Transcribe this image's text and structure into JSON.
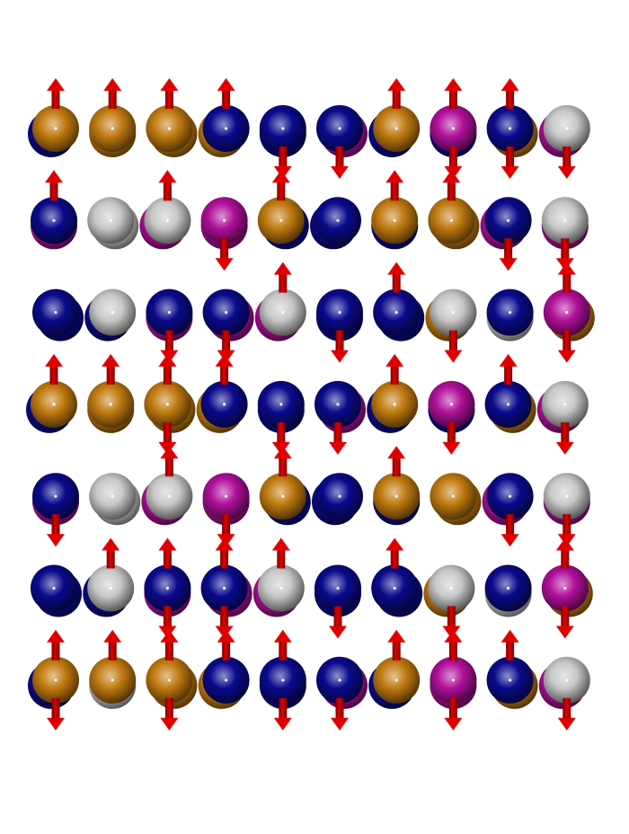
{
  "colors": {
    "background": "#ffffff",
    "blue": "#0a0a8c",
    "orange": "#c07a10",
    "silver": "#c8c8c8",
    "magenta": "#b0109a",
    "arrow": "#e00000",
    "arrow_dark": "#7a0000"
  },
  "lattice": {
    "rows": [
      {
        "atoms": [
          {
            "front": "orange",
            "back": "blue",
            "spin": "up"
          },
          {
            "front": "orange",
            "back": "orange",
            "spin": "up"
          },
          {
            "front": "orange",
            "back": "orange",
            "spin": "up"
          },
          {
            "front": "blue",
            "back": "orange",
            "spin": "up"
          },
          {
            "front": "blue",
            "back": "blue",
            "spin": "down"
          },
          {
            "front": "blue",
            "back": "magenta",
            "spin": "down"
          },
          {
            "front": "orange",
            "back": "blue",
            "spin": "up"
          },
          {
            "front": "magenta",
            "back": "blue",
            "spin": "both"
          },
          {
            "front": "blue",
            "back": "orange",
            "spin": "both"
          },
          {
            "front": "silver",
            "back": "magenta",
            "spin": "down"
          }
        ]
      },
      {
        "atoms": [
          {
            "front": "blue",
            "back": "magenta",
            "spin": "up"
          },
          {
            "front": "silver",
            "back": "silver",
            "spin": "none"
          },
          {
            "front": "silver",
            "back": "magenta",
            "spin": "up"
          },
          {
            "front": "magenta",
            "back": "magenta",
            "spin": "down"
          },
          {
            "front": "orange",
            "back": "blue",
            "spin": "up"
          },
          {
            "front": "blue",
            "back": "blue",
            "spin": "none"
          },
          {
            "front": "orange",
            "back": "blue",
            "spin": "up"
          },
          {
            "front": "orange",
            "back": "orange",
            "spin": "up"
          },
          {
            "front": "blue",
            "back": "magenta",
            "spin": "down"
          },
          {
            "front": "silver",
            "back": "magenta",
            "spin": "down"
          }
        ]
      },
      {
        "atoms": [
          {
            "front": "blue",
            "back": "blue",
            "spin": "none"
          },
          {
            "front": "silver",
            "back": "blue",
            "spin": "none"
          },
          {
            "front": "blue",
            "back": "magenta",
            "spin": "down"
          },
          {
            "front": "blue",
            "back": "magenta",
            "spin": "down"
          },
          {
            "front": "silver",
            "back": "magenta",
            "spin": "up"
          },
          {
            "front": "blue",
            "back": "blue",
            "spin": "down"
          },
          {
            "front": "blue",
            "back": "blue",
            "spin": "up"
          },
          {
            "front": "silver",
            "back": "orange",
            "spin": "down"
          },
          {
            "front": "blue",
            "back": "silver",
            "spin": "none"
          },
          {
            "front": "magenta",
            "back": "orange",
            "spin": "both"
          }
        ]
      },
      {
        "atoms": [
          {
            "front": "orange",
            "back": "blue",
            "spin": "up"
          },
          {
            "front": "orange",
            "back": "orange",
            "spin": "up"
          },
          {
            "front": "orange",
            "back": "orange",
            "spin": "both"
          },
          {
            "front": "blue",
            "back": "orange",
            "spin": "up"
          },
          {
            "front": "blue",
            "back": "blue",
            "spin": "down"
          },
          {
            "front": "blue",
            "back": "magenta",
            "spin": "down"
          },
          {
            "front": "orange",
            "back": "blue",
            "spin": "up"
          },
          {
            "front": "magenta",
            "back": "blue",
            "spin": "down"
          },
          {
            "front": "blue",
            "back": "orange",
            "spin": "up"
          },
          {
            "front": "silver",
            "back": "magenta",
            "spin": "down"
          }
        ]
      },
      {
        "atoms": [
          {
            "front": "blue",
            "back": "magenta",
            "spin": "down"
          },
          {
            "front": "silver",
            "back": "silver",
            "spin": "none"
          },
          {
            "front": "silver",
            "back": "magenta",
            "spin": "up"
          },
          {
            "front": "magenta",
            "back": "magenta",
            "spin": "down"
          },
          {
            "front": "orange",
            "back": "blue",
            "spin": "up"
          },
          {
            "front": "blue",
            "back": "blue",
            "spin": "none"
          },
          {
            "front": "orange",
            "back": "blue",
            "spin": "up"
          },
          {
            "front": "orange",
            "back": "orange",
            "spin": "none"
          },
          {
            "front": "blue",
            "back": "magenta",
            "spin": "down"
          },
          {
            "front": "silver",
            "back": "magenta",
            "spin": "down"
          }
        ]
      },
      {
        "atoms": [
          {
            "front": "blue",
            "back": "blue",
            "spin": "none"
          },
          {
            "front": "silver",
            "back": "blue",
            "spin": "up"
          },
          {
            "front": "blue",
            "back": "magenta",
            "spin": "both"
          },
          {
            "front": "blue",
            "back": "magenta",
            "spin": "both"
          },
          {
            "front": "silver",
            "back": "magenta",
            "spin": "up"
          },
          {
            "front": "blue",
            "back": "blue",
            "spin": "down"
          },
          {
            "front": "blue",
            "back": "blue",
            "spin": "up"
          },
          {
            "front": "silver",
            "back": "orange",
            "spin": "down"
          },
          {
            "front": "blue",
            "back": "silver",
            "spin": "none"
          },
          {
            "front": "magenta",
            "back": "orange",
            "spin": "both"
          }
        ]
      },
      {
        "atoms": [
          {
            "front": "orange",
            "back": "blue",
            "spin": "both"
          },
          {
            "front": "orange",
            "back": "silver",
            "spin": "up"
          },
          {
            "front": "orange",
            "back": "orange",
            "spin": "both"
          },
          {
            "front": "blue",
            "back": "orange",
            "spin": "up"
          },
          {
            "front": "blue",
            "back": "blue",
            "spin": "both"
          },
          {
            "front": "blue",
            "back": "magenta",
            "spin": "down"
          },
          {
            "front": "orange",
            "back": "blue",
            "spin": "up"
          },
          {
            "front": "magenta",
            "back": "magenta",
            "spin": "both"
          },
          {
            "front": "blue",
            "back": "orange",
            "spin": "up"
          },
          {
            "front": "silver",
            "back": "magenta",
            "spin": "down"
          }
        ]
      }
    ]
  }
}
